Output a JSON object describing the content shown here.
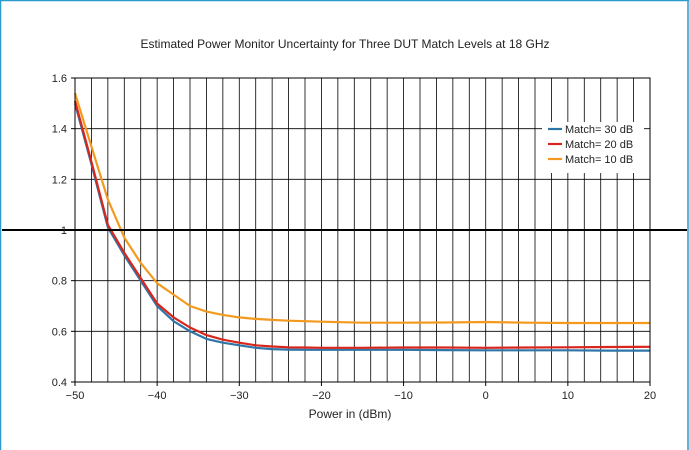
{
  "chart_data": {
    "type": "line",
    "title": "Estimated Power Monitor Uncertainty for Three DUT Match Levels at 18 GHz",
    "xlabel": "Power in (dBm)",
    "ylabel": "",
    "xlim": [
      -50,
      20
    ],
    "ylim": [
      0.4,
      1.6
    ],
    "x_ticks": [
      -50,
      -40,
      -30,
      -20,
      -10,
      0,
      10,
      20
    ],
    "x_tick_labels": [
      "−50",
      "−40",
      "−30",
      "−20",
      "−10",
      "0",
      "10",
      "20"
    ],
    "y_ticks": [
      0.4,
      0.6,
      0.8,
      1,
      1.2,
      1.4,
      1.6
    ],
    "y_tick_labels": [
      "0.4",
      "0.6",
      "0.8",
      "1",
      "1.2",
      "1.4",
      "1.6"
    ],
    "vertical_grid_step": 2,
    "grid": true,
    "reference_line_y": 1,
    "legend_position": "right",
    "series": [
      {
        "name": "Match= 30 dB",
        "color": "#2e75a8",
        "x": [
          -50,
          -48,
          -46,
          -44,
          -42,
          -40,
          -38,
          -36,
          -34,
          -32,
          -30,
          -28,
          -26,
          -24,
          -22,
          -20,
          -15,
          -10,
          -5,
          0,
          5,
          10,
          15,
          20
        ],
        "values": [
          1.5,
          1.26,
          1.01,
          0.9,
          0.8,
          0.7,
          0.64,
          0.6,
          0.57,
          0.555,
          0.545,
          0.535,
          0.53,
          0.528,
          0.527,
          0.527,
          0.527,
          0.527,
          0.526,
          0.525,
          0.525,
          0.525,
          0.524,
          0.524
        ]
      },
      {
        "name": "Match= 20 dB",
        "color": "#d9261c",
        "x": [
          -50,
          -48,
          -46,
          -44,
          -42,
          -40,
          -38,
          -36,
          -34,
          -32,
          -30,
          -28,
          -26,
          -24,
          -22,
          -20,
          -15,
          -10,
          -5,
          0,
          5,
          10,
          15,
          20
        ],
        "values": [
          1.51,
          1.27,
          1.02,
          0.91,
          0.81,
          0.71,
          0.655,
          0.615,
          0.585,
          0.567,
          0.555,
          0.545,
          0.54,
          0.537,
          0.536,
          0.535,
          0.535,
          0.536,
          0.536,
          0.535,
          0.536,
          0.537,
          0.538,
          0.539
        ]
      },
      {
        "name": "Match= 10 dB",
        "color": "#f39a1e",
        "x": [
          -50,
          -48,
          -46,
          -44,
          -42,
          -40,
          -38,
          -36,
          -34,
          -32,
          -30,
          -28,
          -26,
          -24,
          -22,
          -20,
          -15,
          -10,
          -5,
          0,
          5,
          10,
          15,
          20
        ],
        "values": [
          1.54,
          1.33,
          1.12,
          0.97,
          0.87,
          0.79,
          0.745,
          0.7,
          0.678,
          0.665,
          0.655,
          0.649,
          0.645,
          0.642,
          0.64,
          0.638,
          0.634,
          0.634,
          0.635,
          0.637,
          0.634,
          0.633,
          0.633,
          0.633
        ]
      }
    ]
  }
}
